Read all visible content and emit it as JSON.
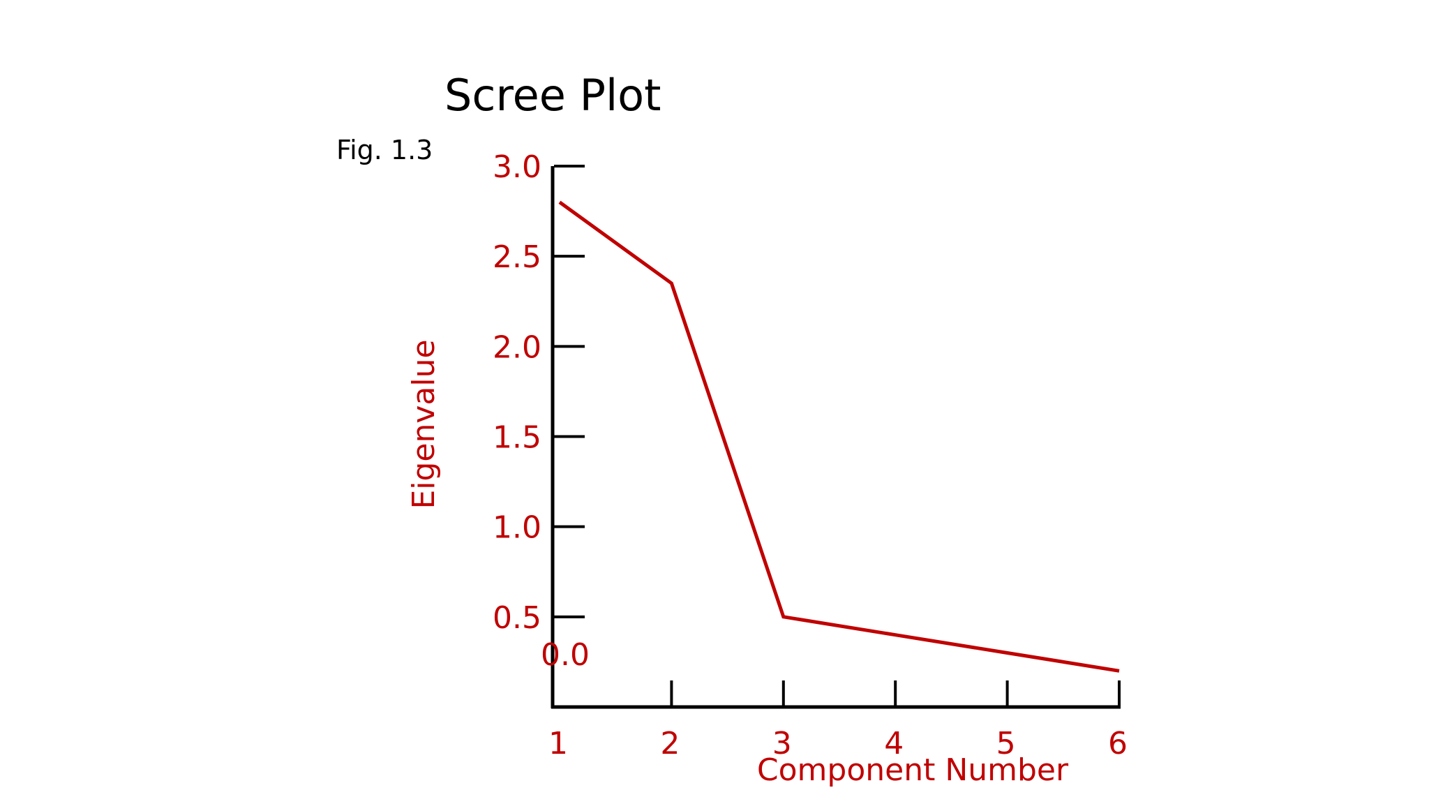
{
  "figure_label": "Fig. 1.3",
  "colors": {
    "series": "#c00000",
    "axis": "#000000",
    "text": "#000000"
  },
  "chart_data": {
    "type": "line",
    "title": "Scree Plot",
    "xlabel": "Component Number",
    "ylabel": "Eigenvalue",
    "x": [
      1,
      2,
      3,
      4,
      5,
      6
    ],
    "values": [
      2.8,
      2.35,
      0.5,
      0.4,
      0.3,
      0.2
    ],
    "x_ticks": [
      "1",
      "2",
      "3",
      "4",
      "5",
      "6"
    ],
    "y_ticks": [
      "0.0",
      "0.5",
      "1.0",
      "1.5",
      "2.0",
      "2.5",
      "3.0"
    ],
    "ylim": [
      0,
      3.0
    ],
    "xlim": [
      1,
      6
    ],
    "grid": false,
    "legend": "none"
  }
}
